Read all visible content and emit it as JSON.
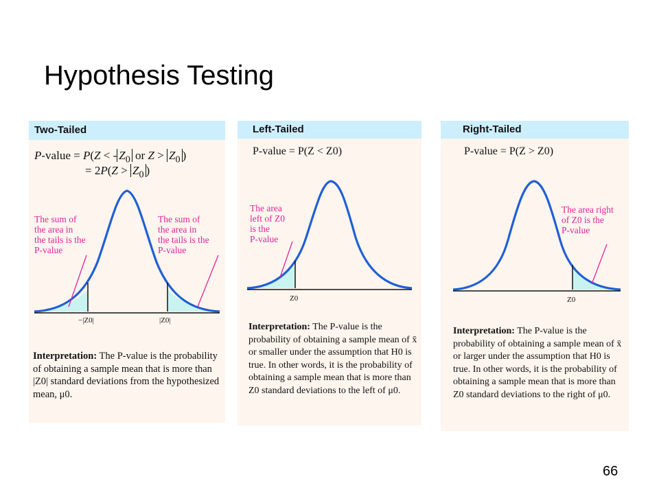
{
  "slide": {
    "title": "Hypothesis Testing",
    "page_number": "66"
  },
  "panels": {
    "two_tailed": {
      "header": "Two-Tailed",
      "formula_line1_prefix": "P",
      "formula_line1": "-value = P(Z < -|Z0| or Z > |Z0|)",
      "formula_line2": "= 2P(Z > |Z0|)",
      "annotation_left": "The sum of\nthe area in\nthe tails is the\nP-value",
      "annotation_right": "The sum of\nthe area in\nthe tails is the\nP-value",
      "axis_label_left": "−|Z0|",
      "axis_label_right": "|Z0|",
      "interpretation_heading": "Interpretation:",
      "interpretation_body": "The P-value is the probability of obtaining a sample mean that is more than |Z0| standard deviations from the hypothesized mean, μ0."
    },
    "left_tailed": {
      "header": "Left-Tailed",
      "formula": "P-value = P(Z < Z0)",
      "annotation": "The area\nleft of Z0\nis the\nP-value",
      "axis_label": "Z0",
      "interpretation_heading": "Interpretation:",
      "interpretation_body": "The P-value is the probability of obtaining a sample mean of x̄ or smaller under the assumption that H0 is true. In other words, it is the probability of obtaining a sample mean that is more than Z0 standard deviations to the left of μ0."
    },
    "right_tailed": {
      "header": "Right-Tailed",
      "formula": "P-value = P(Z > Z0)",
      "annotation": "The area right\nof Z0 is the\nP-value",
      "axis_label": "Z0",
      "interpretation_heading": "Interpretation:",
      "interpretation_body": "The P-value is the probability of obtaining a sample mean of x̄ or larger under the assumption that H0 is true. In other words, it is the probability of obtaining a sample mean that is more than Z0 standard deviations to the right of μ0."
    }
  },
  "colors": {
    "curve": "#1f5fd6",
    "tail_fill": "#c9f3f1",
    "annotation": "#e0249a",
    "panel_background": "#fdf5ee",
    "header_background": "#cdeefd"
  }
}
